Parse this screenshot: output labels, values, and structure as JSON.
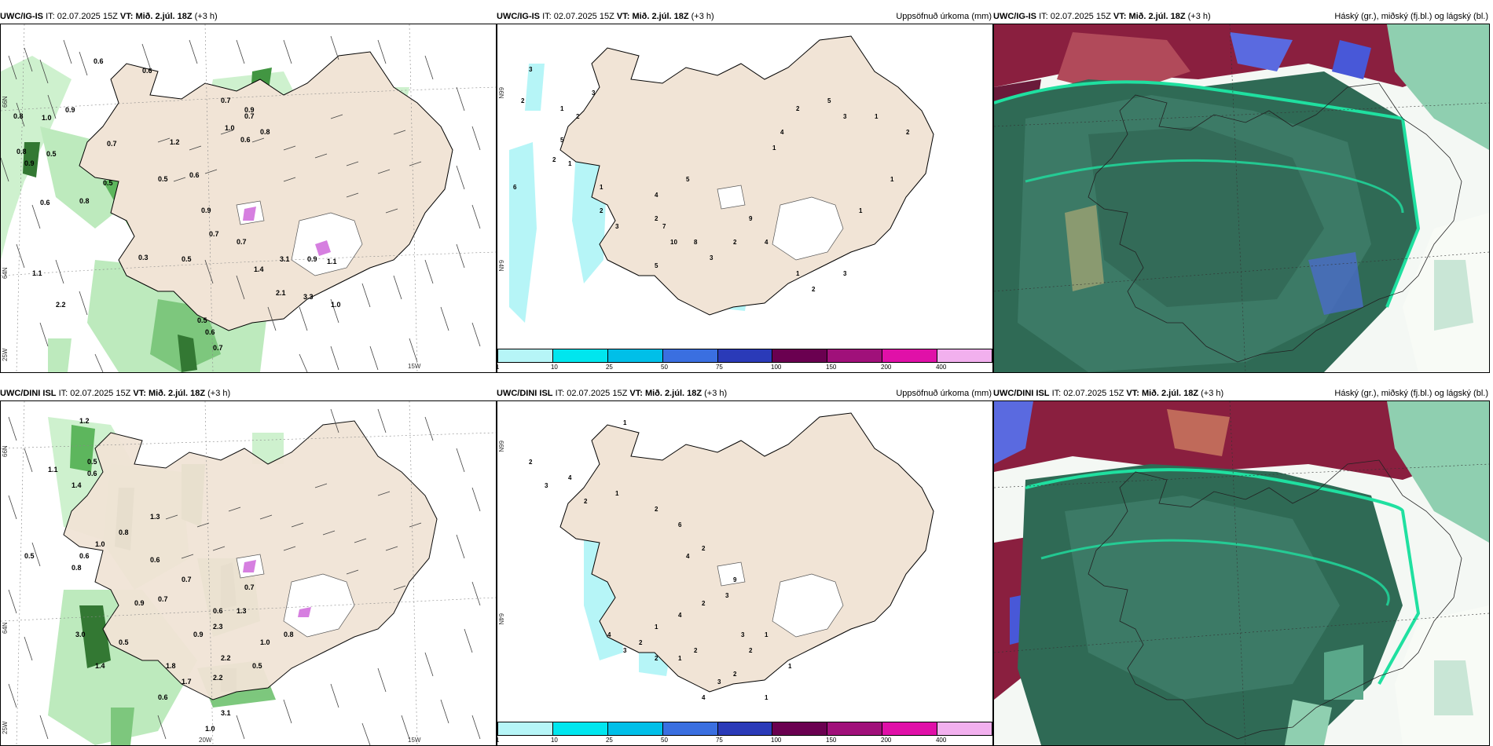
{
  "rows": [
    {
      "model": "UWC/IG-IS",
      "panels": [
        {
          "title_model": "UWC/IG-IS",
          "it_label": "IT:",
          "it_value": "02.07.2025 15Z",
          "vt_label": "VT:",
          "vt_value": "Mið. 2.júl. 18Z",
          "lead": "(+3 h)",
          "right_title": ""
        },
        {
          "title_model": "UWC/IG-IS",
          "it_label": "IT:",
          "it_value": "02.07.2025 15Z",
          "vt_label": "VT:",
          "vt_value": "Mið. 2.júl. 18Z",
          "lead": "(+3 h)",
          "right_title": "Uppsöfnuð úrkoma (mm)"
        },
        {
          "title_model": "UWC/IG-IS",
          "it_label": "IT:",
          "it_value": "02.07.2025 15Z",
          "vt_label": "VT:",
          "vt_value": "Mið. 2.júl. 18Z",
          "lead": "(+3 h)",
          "right_title": "Háský (gr.), miðský (fj.bl.) og lágský (bl.)"
        }
      ]
    },
    {
      "model": "UWC/DINI ISL",
      "panels": [
        {
          "title_model": "UWC/DINI ISL",
          "it_label": "IT:",
          "it_value": "02.07.2025 15Z",
          "vt_label": "VT:",
          "vt_value": "Mið. 2.júl. 18Z",
          "lead": "(+3 h)",
          "right_title": ""
        },
        {
          "title_model": "UWC/DINI ISL",
          "it_label": "IT:",
          "it_value": "02.07.2025 15Z",
          "vt_label": "VT:",
          "vt_value": "Mið. 2.júl. 18Z",
          "lead": "(+3 h)",
          "right_title": "Uppsöfnuð úrkoma (mm)"
        },
        {
          "title_model": "UWC/DINI ISL",
          "it_label": "IT:",
          "it_value": "02.07.2025 15Z",
          "vt_label": "VT:",
          "vt_value": "Mið. 2.júl. 18Z",
          "lead": "(+3 h)",
          "right_title": "Háský (gr.), miðský (fj.bl.) og lágský (bl.)"
        }
      ]
    }
  ],
  "legend": {
    "ticks": [
      "1",
      "10",
      "25",
      "50",
      "75",
      "100",
      "150",
      "200",
      "400"
    ],
    "colors": [
      "#b6f5f7",
      "#00e6ee",
      "#00bfe8",
      "#3a6fe0",
      "#2a3ab8",
      "#6a0050",
      "#a0107a",
      "#e010a8",
      "#f2b0ee"
    ]
  },
  "axes": {
    "lat_66": "66N",
    "lat_64": "64N",
    "lon_25": "25W",
    "lon_20": "20W",
    "lon_15": "15W"
  },
  "labels": {
    "wind_row1": [
      "0.6",
      "0.6",
      "0.8",
      "1.0",
      "0.9",
      "0.8",
      "0.5",
      "0.9",
      "0.7",
      "0.6",
      "0.5",
      "0.8",
      "0.7",
      "0.9",
      "1.0",
      "0.6",
      "0.8",
      "1.2",
      "0.7",
      "0.5",
      "0.6",
      "0.9",
      "0.7",
      "0.5",
      "0.3",
      "0.7",
      "1.4",
      "3.1",
      "0.9",
      "1.1",
      "2.1",
      "3.3",
      "1.0",
      "0.5",
      "0.6",
      "0.7",
      "2.2",
      "1.1"
    ],
    "wind_row2": [
      "1.2",
      "0.5",
      "0.6",
      "1.1",
      "1.4",
      "1.3",
      "0.8",
      "0.6",
      "1.0",
      "0.5",
      "0.6",
      "0.8",
      "0.7",
      "0.9",
      "2.2",
      "2.3",
      "1.0",
      "0.8",
      "3.0",
      "1.4",
      "0.5",
      "0.6",
      "1.3",
      "0.7",
      "0.5",
      "1.8",
      "1.7",
      "0.6",
      "3.1",
      "2.2",
      "1.0",
      "0.9",
      "0.7"
    ],
    "precip_row1": [
      "3",
      "2",
      "1",
      "2",
      "3",
      "5",
      "2",
      "1",
      "6",
      "1",
      "2",
      "3",
      "4",
      "5",
      "2",
      "7",
      "10",
      "5",
      "8",
      "3",
      "2",
      "9",
      "4",
      "1",
      "2",
      "3",
      "1",
      "1",
      "2",
      "1",
      "3",
      "5",
      "2",
      "4",
      "1"
    ],
    "precip_row2": [
      "1",
      "2",
      "3",
      "4",
      "2",
      "1",
      "2",
      "6",
      "4",
      "2",
      "9",
      "3",
      "2",
      "4",
      "1",
      "2",
      "3",
      "4",
      "2",
      "1",
      "2",
      "3",
      "2",
      "1",
      "4",
      "3",
      "2",
      "1",
      "1"
    ]
  }
}
